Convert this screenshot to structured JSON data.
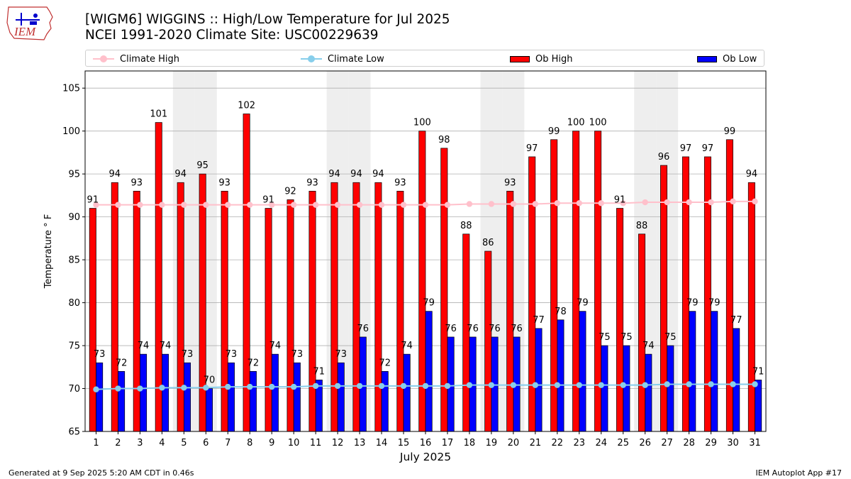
{
  "header": {
    "title_line1": "[WIGM6] WIGGINS :: High/Low Temperature for Jul 2025",
    "title_line2": "NCEI 1991-2020 Climate Site: USC00229639",
    "logo_text": "IEM"
  },
  "legend": {
    "climate_high": "Climate High",
    "climate_low": "Climate Low",
    "ob_high": "Ob High",
    "ob_low": "Ob Low"
  },
  "colors": {
    "ob_high": "#ff0000",
    "ob_low": "#0000ff",
    "climate_high": "#ffc0cb",
    "climate_low": "#87ceeb",
    "weekend_band": "#eeeeee",
    "grid": "#b0b0b0"
  },
  "footer": {
    "left": "Generated at 9 Sep 2025 5:20 AM CDT in 0.46s",
    "right": "IEM Autoplot App #17"
  },
  "chart_data": {
    "type": "bar",
    "title": "[WIGM6] WIGGINS :: High/Low Temperature for Jul 2025",
    "subtitle": "NCEI 1991-2020 Climate Site: USC00229639",
    "xlabel": "July 2025",
    "ylabel": "Temperature ° F",
    "ylim": [
      65,
      107
    ],
    "yticks": [
      65,
      70,
      75,
      80,
      85,
      90,
      95,
      100,
      105
    ],
    "grid": "horizontal",
    "legend_position": "top",
    "categories": [
      "1",
      "2",
      "3",
      "4",
      "5",
      "6",
      "7",
      "8",
      "9",
      "10",
      "11",
      "12",
      "13",
      "14",
      "15",
      "16",
      "17",
      "18",
      "19",
      "20",
      "21",
      "22",
      "23",
      "24",
      "25",
      "26",
      "27",
      "28",
      "29",
      "30",
      "31"
    ],
    "shaded_days": [
      5,
      6,
      12,
      13,
      19,
      20,
      26,
      27
    ],
    "series": [
      {
        "name": "Ob High",
        "kind": "bar",
        "values": [
          91,
          94,
          93,
          101,
          94,
          95,
          93,
          102,
          91,
          92,
          93,
          94,
          94,
          94,
          93,
          100,
          98,
          88,
          86,
          93,
          97,
          99,
          100,
          100,
          91,
          88,
          96,
          97,
          97,
          99,
          94
        ]
      },
      {
        "name": "Ob Low",
        "kind": "bar",
        "values": [
          73,
          72,
          74,
          74,
          73,
          70,
          73,
          72,
          74,
          73,
          71,
          73,
          76,
          72,
          74,
          79,
          76,
          76,
          76,
          76,
          77,
          78,
          79,
          75,
          75,
          74,
          75,
          79,
          79,
          77,
          71
        ]
      },
      {
        "name": "Climate High",
        "kind": "line",
        "values": [
          91.4,
          91.4,
          91.4,
          91.4,
          91.4,
          91.4,
          91.4,
          91.4,
          91.4,
          91.4,
          91.4,
          91.4,
          91.4,
          91.4,
          91.4,
          91.4,
          91.4,
          91.5,
          91.5,
          91.5,
          91.5,
          91.6,
          91.6,
          91.6,
          91.6,
          91.7,
          91.7,
          91.7,
          91.7,
          91.8,
          91.8
        ]
      },
      {
        "name": "Climate Low",
        "kind": "line",
        "values": [
          69.9,
          70.0,
          70.0,
          70.1,
          70.1,
          70.1,
          70.2,
          70.2,
          70.2,
          70.2,
          70.3,
          70.3,
          70.3,
          70.3,
          70.3,
          70.3,
          70.3,
          70.4,
          70.4,
          70.4,
          70.4,
          70.4,
          70.4,
          70.4,
          70.4,
          70.4,
          70.5,
          70.5,
          70.5,
          70.5,
          70.5
        ]
      }
    ]
  }
}
